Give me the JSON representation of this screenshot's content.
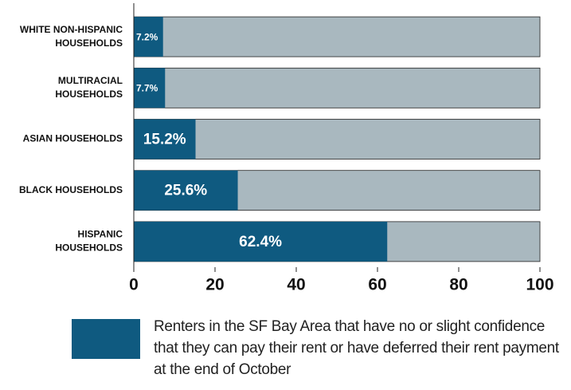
{
  "chart_data": {
    "type": "barh",
    "categories": [
      [
        "WHITE NON-HISPANIC",
        "HOUSEHOLDS"
      ],
      [
        "MULTIRACIAL",
        "HOUSEHOLDS"
      ],
      [
        "ASIAN HOUSEHOLDS"
      ],
      [
        "BLACK HOUSEHOLDS"
      ],
      [
        "HISPANIC",
        "HOUSEHOLDS"
      ]
    ],
    "series": [
      {
        "name": "Renters in the SF Bay Area that have no or slight confidence that they can pay their rent or have deferred their rent payment at the end of October",
        "color": "#0f5a80",
        "values": [
          7.2,
          7.7,
          15.2,
          25.6,
          62.4
        ],
        "value_labels": [
          "7.2%",
          "7.7%",
          "15.2%",
          "25.6%",
          "62.4%"
        ]
      }
    ],
    "track_color": "#a9b8bf",
    "xlim": [
      0,
      100
    ],
    "xticks": [
      0,
      20,
      40,
      60,
      80,
      100
    ]
  }
}
